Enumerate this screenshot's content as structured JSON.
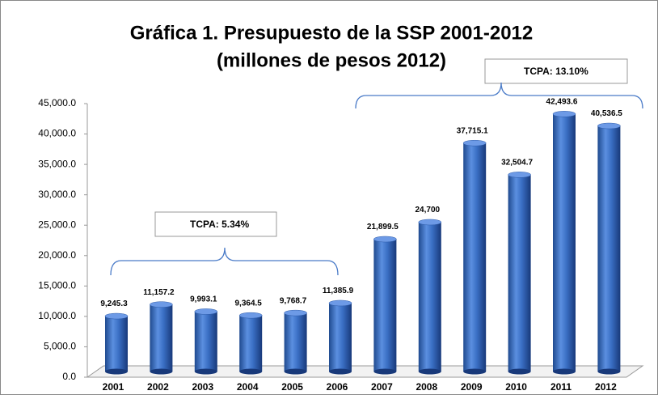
{
  "chart_data": {
    "type": "bar",
    "title": "Gráfica 1. Presupuesto de la SSP 2001-2012",
    "subtitle": "(millones de pesos 2012)",
    "categories": [
      "2001",
      "2002",
      "2003",
      "2004",
      "2005",
      "2006",
      "2007",
      "2008",
      "2009",
      "2010",
      "2011",
      "2012"
    ],
    "values": [
      9245.3,
      11157.2,
      9993.1,
      9364.5,
      9768.7,
      11385.9,
      21899.5,
      24700,
      37715.1,
      32504.7,
      42493.6,
      40536.5
    ],
    "value_labels": [
      "9,245.3",
      "11,157.2",
      "9,993.1",
      "9,364.5",
      "9,768.7",
      "11,385.9",
      "21,899.5",
      "24,700",
      "37,715.1",
      "32,504.7",
      "42,493.6",
      "40,536.5"
    ],
    "color": "#3a6fc4",
    "ylim": [
      0,
      45000
    ],
    "yticks": [
      {
        "value": 0,
        "label": "0.0"
      },
      {
        "value": 5000,
        "label": "5,000.0"
      },
      {
        "value": 10000,
        "label": "10,000.0"
      },
      {
        "value": 15000,
        "label": "15,000.0"
      },
      {
        "value": 20000,
        "label": "20,000.0"
      },
      {
        "value": 25000,
        "label": "25,000.0"
      },
      {
        "value": 30000,
        "label": "30,000.0"
      },
      {
        "value": 35000,
        "label": "35,000.0"
      },
      {
        "value": 40000,
        "label": "40,000.0"
      },
      {
        "value": 45000,
        "label": "45,000.0"
      }
    ],
    "annotations": [
      {
        "text": "TCPA: 5.34%"
      },
      {
        "text": "TCPA: 13.10%"
      }
    ]
  }
}
